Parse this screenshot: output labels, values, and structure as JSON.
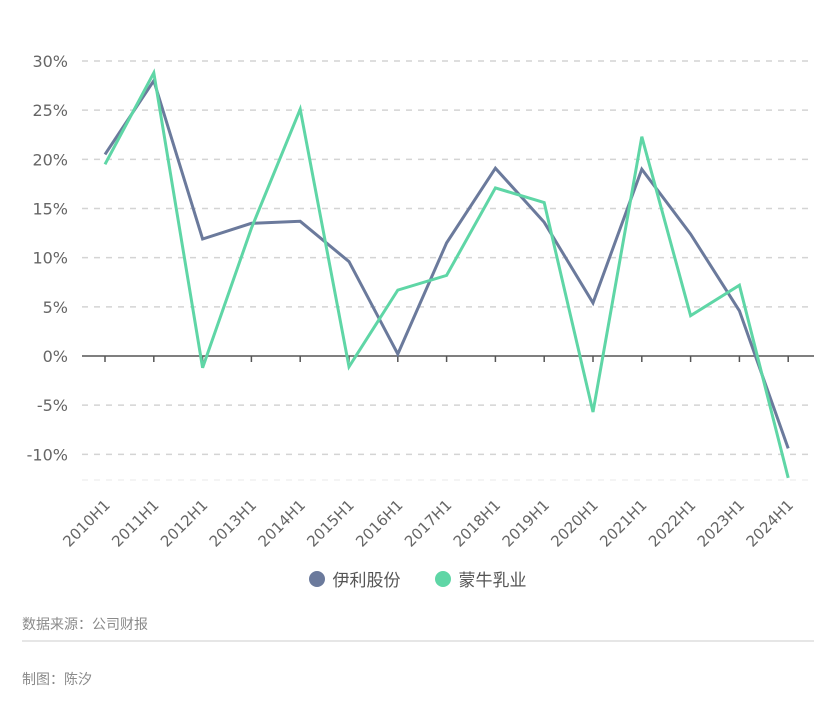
{
  "chart_data": {
    "type": "line",
    "title": "",
    "xlabel": "",
    "ylabel": "",
    "categories": [
      "2010H1",
      "2011H1",
      "2012H1",
      "2013H1",
      "2014H1",
      "2015H1",
      "2016H1",
      "2017H1",
      "2018H1",
      "2019H1",
      "2020H1",
      "2021H1",
      "2022H1",
      "2023H1",
      "2024H1"
    ],
    "series": [
      {
        "name": "伊利股份",
        "color": "#6b7a9c",
        "values": [
          20.5,
          28.0,
          11.9,
          13.5,
          13.7,
          9.6,
          0.2,
          11.5,
          19.1,
          13.6,
          5.4,
          19.0,
          12.4,
          4.6,
          -9.4
        ]
      },
      {
        "name": "蒙牛乳业",
        "color": "#5fd6a6",
        "values": [
          19.5,
          28.8,
          -1.2,
          13.0,
          25.1,
          -1.1,
          6.7,
          8.2,
          17.1,
          15.6,
          -5.7,
          22.3,
          4.1,
          7.2,
          -12.4
        ]
      }
    ],
    "yticks": [
      30,
      25,
      20,
      15,
      10,
      5,
      0,
      -5,
      -10
    ],
    "ytick_labels": [
      "30%",
      "25%",
      "20%",
      "15%",
      "10%",
      "5%",
      "0%",
      "-5%",
      "-10%"
    ],
    "ylim": [
      -12.5,
      30
    ],
    "grid": true,
    "legend_position": "bottom"
  },
  "legend": {
    "items": [
      {
        "label": "伊利股份",
        "color": "#6b7a9c"
      },
      {
        "label": "蒙牛乳业",
        "color": "#5fd6a6"
      }
    ]
  },
  "footer": {
    "source": "数据来源：公司财报",
    "author": "制图：陈汐"
  }
}
